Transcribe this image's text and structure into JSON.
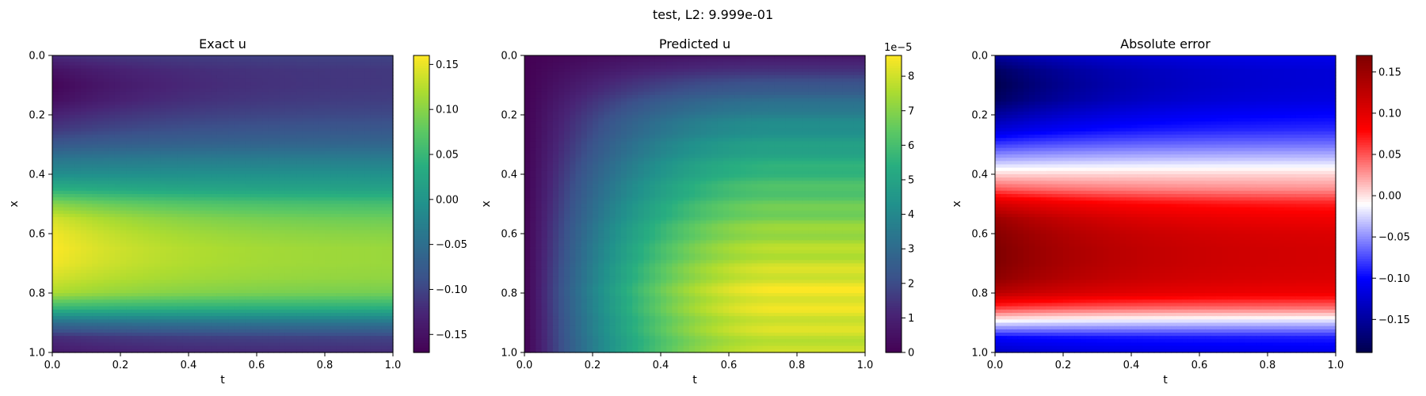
{
  "figure": {
    "suptitle": "test, L2: 9.999e-01"
  },
  "chart_data": [
    {
      "type": "heatmap",
      "title": "Exact u",
      "xlabel": "t",
      "ylabel": "x",
      "xlim": [
        0,
        1
      ],
      "ylim": [
        1,
        0
      ],
      "x_ticks": [
        "0.0",
        "0.2",
        "0.4",
        "0.6",
        "0.8",
        "1.0"
      ],
      "y_ticks": [
        "0.0",
        "0.2",
        "0.4",
        "0.6",
        "0.8",
        "1.0"
      ],
      "colormap": "viridis",
      "colorbar": {
        "range": [
          -0.17,
          0.16
        ],
        "offset_label": "",
        "ticks": [
          {
            "value": -0.15,
            "label": "−0.15"
          },
          {
            "value": -0.1,
            "label": "−0.10"
          },
          {
            "value": -0.05,
            "label": "−0.05"
          },
          {
            "value": 0.0,
            "label": "0.00"
          },
          {
            "value": 0.05,
            "label": "0.05"
          },
          {
            "value": 0.1,
            "label": "0.10"
          },
          {
            "value": 0.15,
            "label": "0.15"
          }
        ]
      },
      "profile": {
        "x": [
          0.0,
          0.05,
          0.1,
          0.15,
          0.2,
          0.25,
          0.3,
          0.35,
          0.4,
          0.45,
          0.5,
          0.55,
          0.6,
          0.65,
          0.7,
          0.75,
          0.8,
          0.85,
          0.9,
          0.95,
          1.0
        ],
        "u_t0": [
          -0.12,
          -0.15,
          -0.165,
          -0.155,
          -0.13,
          -0.11,
          -0.08,
          -0.04,
          -0.01,
          0.04,
          0.1,
          0.14,
          0.155,
          0.16,
          0.155,
          0.14,
          0.12,
          0.05,
          -0.05,
          -0.12,
          -0.14
        ],
        "u_t1": [
          -0.1,
          -0.11,
          -0.11,
          -0.105,
          -0.095,
          -0.08,
          -0.06,
          -0.03,
          -0.005,
          0.02,
          0.06,
          0.085,
          0.1,
          0.11,
          0.11,
          0.105,
          0.09,
          0.04,
          -0.04,
          -0.1,
          -0.12
        ]
      }
    },
    {
      "type": "heatmap",
      "title": "Predicted u",
      "xlabel": "t",
      "ylabel": "x",
      "xlim": [
        0,
        1
      ],
      "ylim": [
        1,
        0
      ],
      "x_ticks": [
        "0.0",
        "0.2",
        "0.4",
        "0.6",
        "0.8",
        "1.0"
      ],
      "y_ticks": [
        "0.0",
        "0.2",
        "0.4",
        "0.6",
        "0.8",
        "1.0"
      ],
      "colormap": "viridis",
      "colorbar": {
        "range": [
          0,
          8.6
        ],
        "offset_label": "1e−5",
        "ticks": [
          {
            "value": 0,
            "label": "0"
          },
          {
            "value": 1,
            "label": "1"
          },
          {
            "value": 2,
            "label": "2"
          },
          {
            "value": 3,
            "label": "3"
          },
          {
            "value": 4,
            "label": "4"
          },
          {
            "value": 5,
            "label": "5"
          },
          {
            "value": 6,
            "label": "6"
          },
          {
            "value": 7,
            "label": "7"
          },
          {
            "value": 8,
            "label": "8"
          }
        ]
      },
      "profile": {
        "x": [
          0.0,
          0.2,
          0.4,
          0.6,
          0.8,
          1.0
        ],
        "growth_t_at_max": 0.75,
        "scale_by_x": [
          0.08,
          0.45,
          0.68,
          0.87,
          1.0,
          0.92
        ]
      }
    },
    {
      "type": "heatmap",
      "title": "Absolute error",
      "xlabel": "t",
      "ylabel": "x",
      "xlim": [
        0,
        1
      ],
      "ylim": [
        1,
        0
      ],
      "x_ticks": [
        "0.0",
        "0.2",
        "0.4",
        "0.6",
        "0.8",
        "1.0"
      ],
      "y_ticks": [
        "0.0",
        "0.2",
        "0.4",
        "0.6",
        "0.8",
        "1.0"
      ],
      "colormap": "seismic",
      "colorbar": {
        "range": [
          -0.19,
          0.17
        ],
        "offset_label": "",
        "ticks": [
          {
            "value": -0.15,
            "label": "−0.15"
          },
          {
            "value": -0.1,
            "label": "−0.10"
          },
          {
            "value": -0.05,
            "label": "−0.05"
          },
          {
            "value": 0.0,
            "label": "0.00"
          },
          {
            "value": 0.05,
            "label": "0.05"
          },
          {
            "value": 0.1,
            "label": "0.10"
          },
          {
            "value": 0.15,
            "label": "0.15"
          }
        ]
      },
      "profile": {
        "x": [
          0.0,
          0.05,
          0.1,
          0.15,
          0.2,
          0.25,
          0.3,
          0.35,
          0.4,
          0.45,
          0.5,
          0.55,
          0.6,
          0.65,
          0.7,
          0.75,
          0.8,
          0.85,
          0.9,
          0.95,
          1.0
        ],
        "u_t0": [
          -0.15,
          -0.18,
          -0.19,
          -0.18,
          -0.15,
          -0.12,
          -0.08,
          -0.04,
          0.005,
          0.05,
          0.11,
          0.15,
          0.165,
          0.17,
          0.17,
          0.16,
          0.13,
          0.06,
          -0.02,
          -0.1,
          -0.13
        ],
        "u_t1": [
          -0.11,
          -0.12,
          -0.12,
          -0.115,
          -0.1,
          -0.085,
          -0.06,
          -0.03,
          0.005,
          0.03,
          0.07,
          0.09,
          0.105,
          0.11,
          0.11,
          0.105,
          0.09,
          0.04,
          -0.03,
          -0.09,
          -0.11
        ]
      }
    }
  ]
}
